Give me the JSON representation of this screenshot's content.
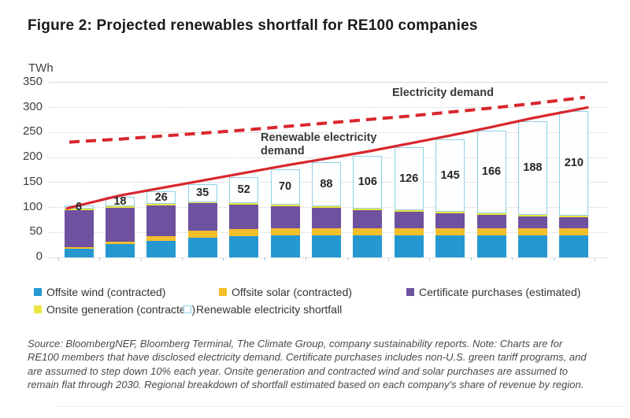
{
  "chart_data": {
    "type": "bar",
    "stacked": true,
    "title": "Figure 2: Projected renewables shortfall for RE100 companies",
    "ylabel": "TWh",
    "xlabel": "",
    "ylim": [
      0,
      350
    ],
    "y_ticks": [
      350,
      300,
      250,
      200,
      150,
      100,
      50,
      0
    ],
    "grid": true,
    "legend_position": "bottom",
    "n_categories": 13,
    "categories": [
      "",
      "",
      "",
      "",
      "",
      "",
      "",
      "",
      "",
      "",
      "",
      "",
      ""
    ],
    "series": [
      {
        "key": "offsite-wind",
        "name": "Offsite wind (contracted)",
        "color": "#2598D2",
        "values": [
          18,
          27,
          33,
          40,
          43,
          44,
          44,
          44,
          44,
          44,
          44,
          44,
          44
        ]
      },
      {
        "key": "offsite-solar",
        "name": "Offsite solar (contracted)",
        "color": "#F3BF2B",
        "values": [
          3,
          5,
          10,
          13,
          14,
          14,
          14,
          14,
          14,
          14,
          14,
          14,
          14
        ]
      },
      {
        "key": "certificates",
        "name": "Certificate purchases (estimated)",
        "color": "#6E519F",
        "values": [
          74,
          68,
          61,
          55,
          49,
          45,
          41,
          37,
          33,
          30,
          27,
          24,
          22
        ]
      },
      {
        "key": "onsite-generation",
        "name": "Onsite generation (contracted)",
        "color": "#EDE53F",
        "values": [
          3,
          3,
          3,
          3,
          3,
          3,
          3,
          3,
          3,
          3,
          3,
          3,
          3
        ]
      },
      {
        "key": "shortfall",
        "name": "Renewable electricity shortfall",
        "color": "#FDFEFF",
        "fill": "#FDFEFF",
        "border_color": "#8FD1E5",
        "values": [
          6,
          18,
          26,
          35,
          52,
          70,
          88,
          106,
          126,
          145,
          166,
          188,
          210
        ]
      }
    ],
    "lines": [
      {
        "name": "Electricity demand",
        "style": "dashed",
        "color": "#D8262C",
        "values": [
          232,
          237,
          243,
          249,
          255,
          262,
          269,
          276,
          283,
          291,
          299,
          308,
          318
        ]
      },
      {
        "name": "Renewable electricity demand",
        "style": "solid",
        "color": "#D8262C",
        "values": [
          104,
          124,
          139,
          154,
          169,
          184,
          198,
          212,
          228,
          244,
          261,
          279,
          295
        ]
      }
    ],
    "bar_value_labels": [
      6,
      18,
      26,
      35,
      52,
      70,
      88,
      106,
      126,
      145,
      166,
      188,
      210
    ],
    "grid_color": "#D6D6D6"
  },
  "footer": {
    "source_note": "Source: BloombergNEF, Bloomberg Terminal, The Climate Group, company sustainability reports. Note: Charts are for RE100 members that have disclosed electricity demand. Certificate purchases includes non-U.S. green tariff programs, and are assumed to step down 10% each year. Onsite generation and contracted wind and solar purchases are assumed to remain flat through 2030. Regional breakdown of shortfall estimated based on each company's share of revenue by region."
  }
}
